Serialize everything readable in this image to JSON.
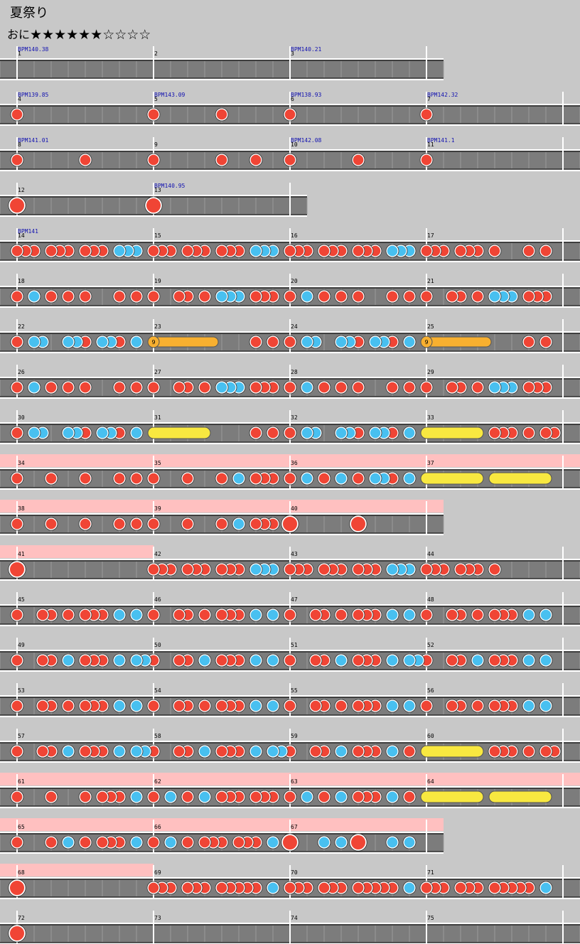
{
  "header": {
    "title": "夏祭り",
    "difficulty": "おに",
    "stars": "★★★★★★☆☆☆☆"
  },
  "rows": [
    {
      "measures": [
        {
          "number": 1,
          "bpm": "BPM140.38"
        },
        {
          "number": 2
        },
        {
          "number": 3,
          "bpm": "BPM140.21"
        }
      ]
    },
    {
      "measures": [
        {
          "number": 4,
          "bpm": "BPM139.85"
        },
        {
          "number": 5,
          "bpm": "BPM143.09"
        },
        {
          "number": 6,
          "bpm": "BPM138.93"
        },
        {
          "number": 7,
          "bpm": "BPM142.32"
        }
      ]
    },
    {
      "measures": [
        {
          "number": 8,
          "bpm": "BPM141.01"
        },
        {
          "number": 9
        },
        {
          "number": 10,
          "bpm": "BPM142.08"
        },
        {
          "number": 11,
          "bpm": "BPM141.1"
        }
      ]
    },
    {
      "measures": [
        {
          "number": 12
        },
        {
          "number": 13,
          "bpm": "BPM140.95"
        }
      ]
    },
    {
      "measures": [
        {
          "number": 14,
          "bpm": "BPM141"
        },
        {
          "number": 15
        },
        {
          "number": 16
        },
        {
          "number": 17
        }
      ]
    },
    {
      "measures": [
        {
          "number": 18
        },
        {
          "number": 19
        },
        {
          "number": 20
        },
        {
          "number": 21
        }
      ]
    },
    {
      "measures": [
        {
          "number": 22
        },
        {
          "number": 23,
          "balloon": 9
        },
        {
          "number": 24
        },
        {
          "number": 25,
          "balloon": 9
        }
      ]
    },
    {
      "measures": [
        {
          "number": 26
        },
        {
          "number": 27
        },
        {
          "number": 28
        },
        {
          "number": 29
        }
      ]
    },
    {
      "measures": [
        {
          "number": 30
        },
        {
          "number": 31
        },
        {
          "number": 32
        },
        {
          "number": 33
        }
      ]
    },
    {
      "measures": [
        {
          "number": 34,
          "gogo": true
        },
        {
          "number": 35,
          "gogo": true
        },
        {
          "number": 36,
          "gogo": true
        },
        {
          "number": 37,
          "gogo": true
        }
      ]
    },
    {
      "measures": [
        {
          "number": 38,
          "gogo": true
        },
        {
          "number": 39,
          "gogo": true
        },
        {
          "number": 40,
          "gogo": true
        }
      ]
    },
    {
      "measures": [
        {
          "number": 41,
          "gogo": true
        },
        {
          "number": 42
        },
        {
          "number": 43
        },
        {
          "number": 44
        }
      ]
    },
    {
      "measures": [
        {
          "number": 45
        },
        {
          "number": 46
        },
        {
          "number": 47
        },
        {
          "number": 48
        }
      ]
    },
    {
      "measures": [
        {
          "number": 49
        },
        {
          "number": 50
        },
        {
          "number": 51
        },
        {
          "number": 52
        }
      ]
    },
    {
      "measures": [
        {
          "number": 53
        },
        {
          "number": 54
        },
        {
          "number": 55
        },
        {
          "number": 56
        }
      ]
    },
    {
      "measures": [
        {
          "number": 57
        },
        {
          "number": 58
        },
        {
          "number": 59
        },
        {
          "number": 60
        }
      ]
    },
    {
      "measures": [
        {
          "number": 61,
          "gogo": true
        },
        {
          "number": 62,
          "gogo": true
        },
        {
          "number": 63,
          "gogo": true
        },
        {
          "number": 64,
          "gogo": true
        }
      ]
    },
    {
      "measures": [
        {
          "number": 65,
          "gogo": true
        },
        {
          "number": 66,
          "gogo": true
        },
        {
          "number": 67,
          "gogo": true
        }
      ]
    },
    {
      "measures": [
        {
          "number": 68,
          "gogo": true
        },
        {
          "number": 69
        },
        {
          "number": 70
        },
        {
          "number": 71
        }
      ]
    },
    {
      "measures": [
        {
          "number": 72
        },
        {
          "number": 73
        },
        {
          "number": 74
        },
        {
          "number": 75
        }
      ]
    }
  ]
}
